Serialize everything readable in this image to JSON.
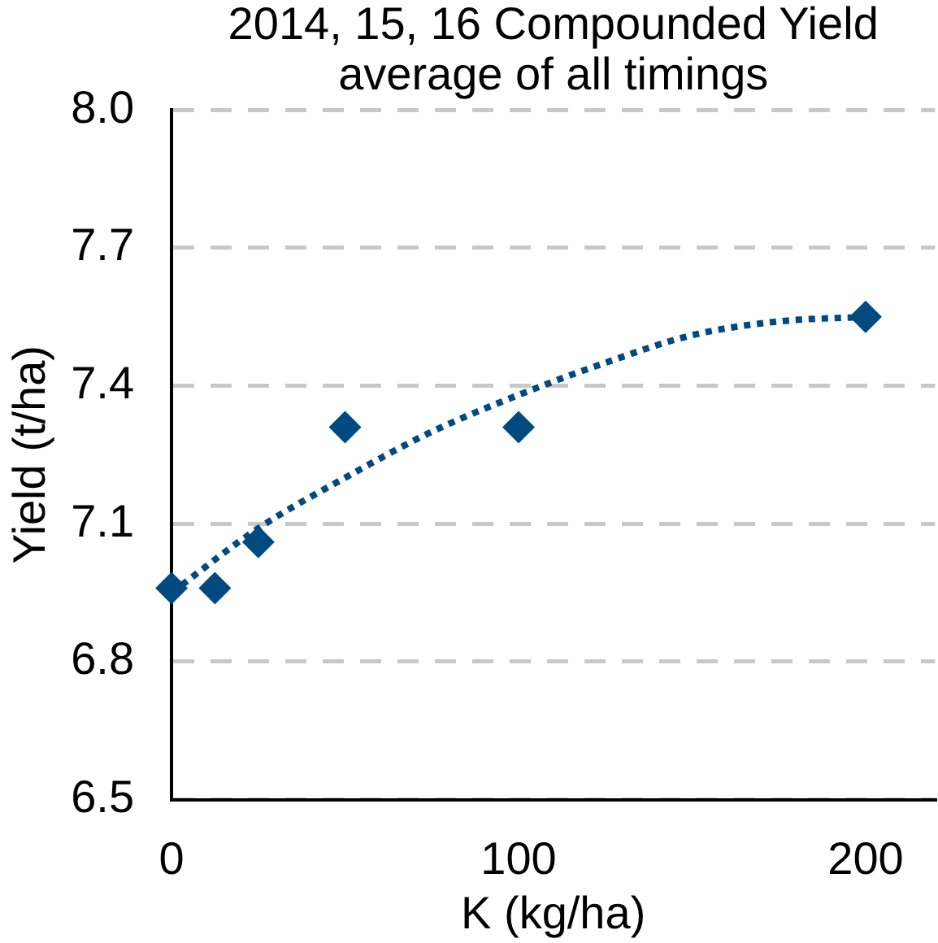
{
  "chart_data": {
    "type": "scatter",
    "title": "2014, 15, 16 Compounded Yield",
    "subtitle": "average of all timings",
    "xlabel": "K (kg/ha)",
    "ylabel": "Yield (t/ha)",
    "xlim": [
      0,
      220
    ],
    "xticks": [
      0,
      100,
      200
    ],
    "ylim": [
      6.5,
      8.0
    ],
    "yticks": [
      6.5,
      6.8,
      7.1,
      7.4,
      7.7,
      {
        "value": 8,
        "label": "8.0"
      }
    ],
    "grid": "y",
    "marker": "diamond",
    "series": [
      {
        "color": "#004a80",
        "x": [
          0,
          12.5,
          25,
          50,
          100,
          200
        ],
        "values": [
          6.96,
          6.96,
          7.06,
          7.31,
          7.31,
          7.55
        ]
      },
      {
        "type": "line",
        "color": "#004a80",
        "line_style": "dotted",
        "marker": "none",
        "x": [
          0,
          25,
          50,
          75,
          100,
          125,
          150,
          175,
          200
        ],
        "values": [
          6.95,
          7.09,
          7.2,
          7.3,
          7.38,
          7.45,
          7.51,
          7.54,
          7.55
        ]
      }
    ]
  }
}
